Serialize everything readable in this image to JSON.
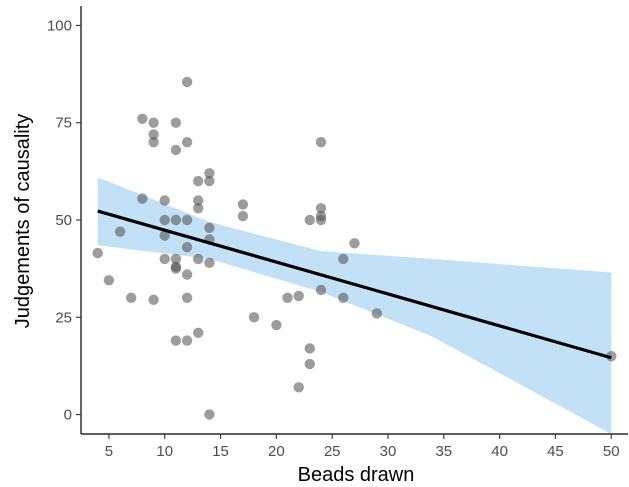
{
  "chart_data": {
    "type": "scatter",
    "title": "",
    "xlabel": "Beads drawn",
    "ylabel": "Judgements of causality",
    "xlim": [
      2.5,
      51.5
    ],
    "ylim": [
      -5,
      105
    ],
    "x_ticks": [
      5,
      10,
      15,
      20,
      25,
      30,
      35,
      40,
      45,
      50
    ],
    "y_ticks": [
      0,
      25,
      50,
      75,
      100
    ],
    "grid": false,
    "legend": "none",
    "colors": {
      "points": "#4d4d4d",
      "fit_line": "#000000",
      "ci_band": "#b9dcf4",
      "axis": "#000000"
    },
    "points": [
      {
        "x": 4,
        "y": 41.5
      },
      {
        "x": 5,
        "y": 34.5
      },
      {
        "x": 6,
        "y": 47
      },
      {
        "x": 7,
        "y": 30
      },
      {
        "x": 8,
        "y": 76
      },
      {
        "x": 8,
        "y": 55.5
      },
      {
        "x": 9,
        "y": 75
      },
      {
        "x": 9,
        "y": 72
      },
      {
        "x": 9,
        "y": 70
      },
      {
        "x": 9,
        "y": 29.5
      },
      {
        "x": 10,
        "y": 55
      },
      {
        "x": 10,
        "y": 50
      },
      {
        "x": 10,
        "y": 46
      },
      {
        "x": 10,
        "y": 40
      },
      {
        "x": 11,
        "y": 75
      },
      {
        "x": 11,
        "y": 68
      },
      {
        "x": 11,
        "y": 50
      },
      {
        "x": 11,
        "y": 40
      },
      {
        "x": 11,
        "y": 38
      },
      {
        "x": 11,
        "y": 37.5
      },
      {
        "x": 11,
        "y": 19
      },
      {
        "x": 12,
        "y": 85.5
      },
      {
        "x": 12,
        "y": 70
      },
      {
        "x": 12,
        "y": 50
      },
      {
        "x": 12,
        "y": 43
      },
      {
        "x": 12,
        "y": 36
      },
      {
        "x": 12,
        "y": 30
      },
      {
        "x": 12,
        "y": 19
      },
      {
        "x": 13,
        "y": 60
      },
      {
        "x": 13,
        "y": 55
      },
      {
        "x": 13,
        "y": 53
      },
      {
        "x": 13,
        "y": 40
      },
      {
        "x": 13,
        "y": 21
      },
      {
        "x": 14,
        "y": 62
      },
      {
        "x": 14,
        "y": 60
      },
      {
        "x": 14,
        "y": 48
      },
      {
        "x": 14,
        "y": 45
      },
      {
        "x": 14,
        "y": 39
      },
      {
        "x": 14,
        "y": 0
      },
      {
        "x": 17,
        "y": 51
      },
      {
        "x": 17,
        "y": 54
      },
      {
        "x": 18,
        "y": 25
      },
      {
        "x": 20,
        "y": 23
      },
      {
        "x": 21,
        "y": 30
      },
      {
        "x": 22,
        "y": 30.5
      },
      {
        "x": 22,
        "y": 7
      },
      {
        "x": 23,
        "y": 50
      },
      {
        "x": 23,
        "y": 13
      },
      {
        "x": 23,
        "y": 17
      },
      {
        "x": 24,
        "y": 70
      },
      {
        "x": 24,
        "y": 53
      },
      {
        "x": 24,
        "y": 51
      },
      {
        "x": 24,
        "y": 50
      },
      {
        "x": 24,
        "y": 32
      },
      {
        "x": 26,
        "y": 40
      },
      {
        "x": 26,
        "y": 30
      },
      {
        "x": 27,
        "y": 44
      },
      {
        "x": 29,
        "y": 26
      },
      {
        "x": 50,
        "y": 15
      }
    ],
    "fit_line": {
      "x": [
        4,
        50
      ],
      "y": [
        52.3,
        14.6
      ]
    },
    "ci_band": {
      "x": [
        4,
        14,
        24,
        34,
        50
      ],
      "lower": [
        43.5,
        40,
        31.5,
        20,
        -5
      ],
      "upper": [
        61,
        49.5,
        42,
        40,
        36.5
      ]
    }
  }
}
